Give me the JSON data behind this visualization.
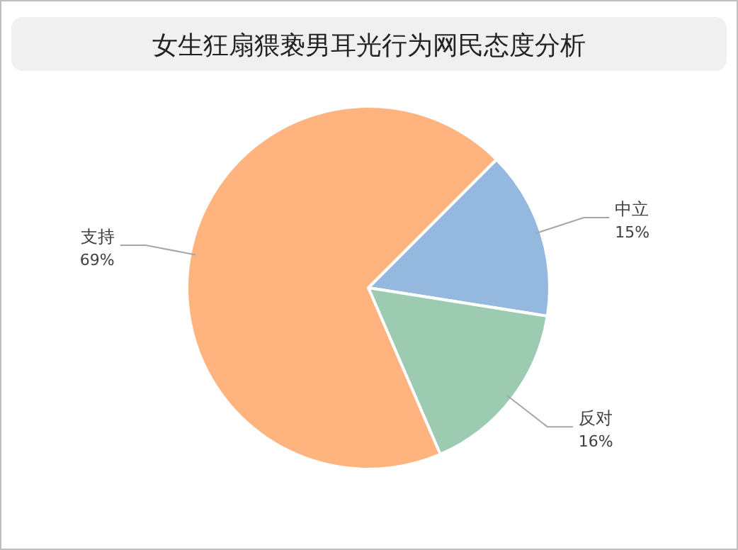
{
  "chart_data": {
    "type": "pie",
    "title": "女生狂扇猥亵男耳光行为网民态度分析",
    "categories": [
      "中立",
      "反对",
      "支持"
    ],
    "values": [
      15,
      16,
      69
    ],
    "colors": [
      "#95b9de",
      "#9ccbb1",
      "#ffb37f"
    ],
    "value_labels": [
      "15%",
      "16%",
      "69%"
    ]
  }
}
